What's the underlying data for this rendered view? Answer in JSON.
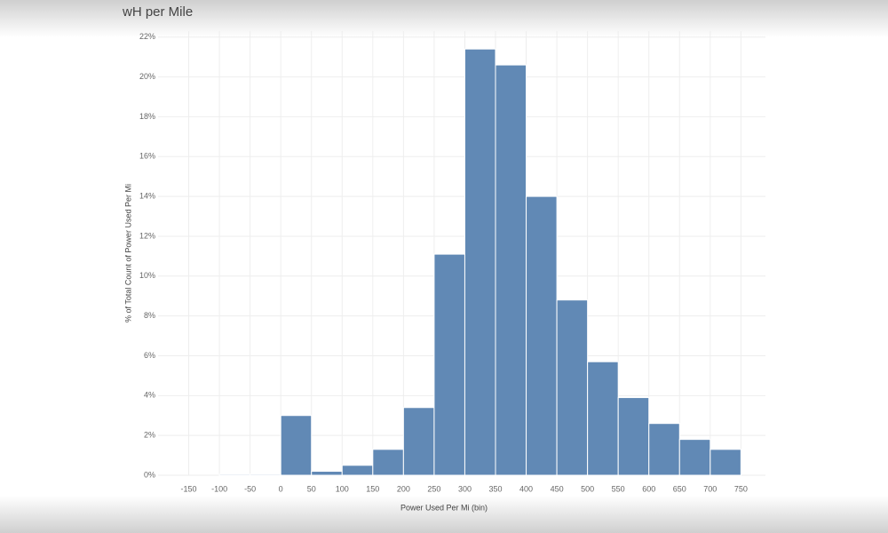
{
  "chart_data": {
    "type": "histogram",
    "title": "wH per Mile",
    "x_label": "Power Used Per Mi (bin)",
    "y_label": "% of Total Count of Power Used Per Mi",
    "bins": [
      -100,
      -50,
      0,
      50,
      100,
      150,
      200,
      250,
      300,
      350,
      400,
      450,
      500,
      550,
      600,
      650,
      700,
      750
    ],
    "values": [
      0.05,
      0.05,
      3.0,
      0.2,
      0.5,
      1.3,
      3.4,
      11.1,
      21.4,
      20.6,
      14.0,
      8.8,
      5.7,
      3.9,
      2.6,
      1.8,
      1.3
    ],
    "color": "#6189b5",
    "xlim": [
      -200,
      790
    ],
    "ylim": [
      0,
      22.3
    ],
    "xticks": [
      -150,
      -100,
      -50,
      0,
      50,
      100,
      150,
      200,
      250,
      300,
      350,
      400,
      450,
      500,
      550,
      600,
      650,
      700,
      750
    ],
    "yticks": [
      {
        "value": 0,
        "label": "0%"
      },
      {
        "value": 2,
        "label": "2%"
      },
      {
        "value": 4,
        "label": "4%"
      },
      {
        "value": 6,
        "label": "6%"
      },
      {
        "value": 8,
        "label": "8%"
      },
      {
        "value": 10,
        "label": "10%"
      },
      {
        "value": 12,
        "label": "12%"
      },
      {
        "value": 14,
        "label": "14%"
      },
      {
        "value": 16,
        "label": "16%"
      },
      {
        "value": 18,
        "label": "18%"
      },
      {
        "value": 20,
        "label": "20%"
      },
      {
        "value": 22,
        "label": "22%"
      }
    ],
    "grid": true
  }
}
